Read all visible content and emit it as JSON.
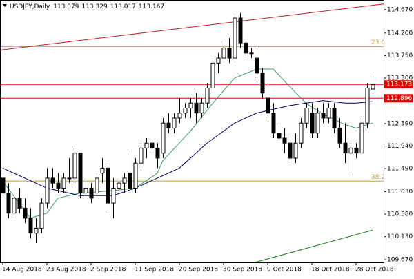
{
  "chart_data": {
    "type": "candlestick",
    "title": "USDJPY,Daily",
    "categories": [
      "14 Aug 2018",
      null,
      null,
      null,
      null,
      null,
      null,
      null,
      "23 Aug 2018",
      null,
      null,
      null,
      null,
      null,
      null,
      null,
      "2 Sep 2018",
      null,
      null,
      null,
      null,
      null,
      null,
      null,
      "11 Sep 2018",
      null,
      null,
      null,
      null,
      null,
      null,
      null,
      "20 Sep 2018",
      null,
      null,
      null,
      null,
      null,
      null,
      null,
      "30 Sep 2018",
      null,
      null,
      null,
      null,
      null,
      null,
      null,
      "9 Oct 2018",
      null,
      null,
      null,
      null,
      null,
      null,
      null,
      "18 Oct 2018",
      null,
      null,
      null,
      null,
      null,
      null,
      null,
      "28 Oct 2018",
      null,
      null,
      null
    ],
    "open": [
      111.3,
      111.0,
      110.6,
      110.9,
      110.7,
      110.5,
      110.2,
      110.3,
      110.8,
      111.3,
      111.2,
      111.1,
      111.3,
      111.3,
      111.8,
      111.0,
      111.1,
      111.0,
      111.4,
      111.5,
      110.8,
      111.1,
      111.2,
      111.4,
      111.1,
      111.6,
      111.9,
      112.0,
      111.9,
      111.8,
      112.4,
      112.3,
      112.5,
      112.6,
      112.7,
      112.8,
      112.6,
      112.8,
      113.1,
      113.6,
      113.7,
      113.9,
      113.7,
      114.5,
      114.0,
      113.8,
      113.7,
      113.4,
      112.9,
      112.6,
      112.2,
      112.1,
      112.0,
      111.7,
      112.0,
      112.4,
      112.6,
      112.2,
      112.6,
      112.5,
      112.7,
      112.3,
      112.0,
      111.8,
      111.9,
      111.8,
      112.4,
      113.079
    ],
    "high": [
      111.4,
      111.2,
      111.0,
      111.1,
      110.9,
      110.7,
      110.5,
      110.9,
      111.5,
      111.5,
      111.4,
      111.4,
      111.7,
      111.9,
      111.8,
      111.3,
      111.2,
      111.4,
      111.7,
      111.6,
      111.3,
      111.3,
      111.4,
      111.8,
      111.7,
      112.0,
      112.1,
      112.1,
      112.0,
      112.5,
      112.6,
      112.6,
      112.9,
      112.8,
      112.9,
      113.0,
      112.9,
      113.2,
      113.7,
      113.8,
      114.0,
      114.1,
      114.6,
      114.6,
      114.2,
      113.9,
      113.9,
      113.5,
      113.2,
      112.8,
      112.4,
      112.3,
      112.2,
      112.2,
      112.5,
      112.8,
      112.8,
      112.7,
      112.8,
      112.8,
      112.8,
      112.5,
      112.4,
      112.0,
      112.0,
      112.5,
      113.2,
      113.329
    ],
    "low": [
      110.9,
      110.5,
      110.5,
      110.6,
      110.4,
      110.1,
      110.0,
      110.2,
      110.7,
      111.1,
      111.0,
      111.0,
      111.2,
      111.2,
      110.9,
      110.9,
      110.8,
      110.9,
      111.2,
      110.6,
      110.5,
      111.0,
      111.0,
      111.0,
      111.0,
      111.5,
      111.7,
      111.8,
      111.5,
      111.7,
      112.2,
      112.2,
      112.4,
      112.5,
      112.5,
      112.4,
      112.5,
      112.7,
      113.0,
      113.4,
      113.6,
      113.6,
      113.6,
      113.9,
      113.7,
      113.7,
      113.3,
      112.9,
      112.5,
      112.1,
      112.0,
      111.8,
      111.6,
      111.6,
      111.9,
      112.3,
      112.1,
      112.1,
      112.4,
      112.4,
      112.2,
      111.9,
      111.6,
      111.4,
      111.7,
      111.8,
      112.3,
      113.017
    ],
    "close": [
      111.0,
      110.6,
      110.9,
      110.7,
      110.5,
      110.2,
      110.3,
      110.8,
      111.3,
      111.2,
      111.1,
      111.3,
      111.3,
      111.8,
      111.0,
      111.1,
      110.9,
      111.3,
      111.5,
      110.8,
      111.1,
      111.2,
      111.3,
      111.1,
      111.6,
      111.9,
      112.0,
      111.9,
      111.7,
      112.4,
      112.3,
      112.5,
      112.6,
      112.7,
      112.8,
      112.6,
      112.8,
      113.1,
      113.6,
      113.7,
      113.9,
      113.7,
      114.5,
      114.0,
      113.8,
      113.8,
      113.4,
      113.0,
      112.6,
      112.2,
      112.1,
      112.0,
      111.7,
      112.0,
      112.4,
      112.7,
      112.2,
      112.6,
      112.5,
      112.7,
      112.3,
      112.0,
      111.8,
      111.9,
      111.8,
      112.4,
      113.1,
      113.167
    ],
    "ylim": [
      109.615,
      114.86
    ],
    "yticks": [
      {
        "value": 109.67,
        "label": "109.670"
      },
      {
        "value": 110.13,
        "label": "110.130"
      },
      {
        "value": 110.58,
        "label": "110.580"
      },
      {
        "value": 111.03,
        "label": "111.030"
      },
      {
        "value": 111.49,
        "label": "111.490"
      },
      {
        "value": 111.94,
        "label": "111.940"
      },
      {
        "value": 112.39,
        "label": "112.390"
      },
      {
        "value": 113.3,
        "label": "113.300"
      },
      {
        "value": 113.75,
        "label": "113.750"
      },
      {
        "value": 114.2,
        "label": "114.200"
      },
      {
        "value": 114.67,
        "label": "114.670"
      }
    ],
    "lines": [
      {
        "color": "#3c9a5f",
        "x": [
          0,
          5,
          8,
          10,
          14,
          20,
          24,
          28,
          29,
          34,
          38,
          42,
          46,
          49,
          52,
          55,
          58,
          62,
          64,
          67
        ],
        "values": [
          111.24,
          110.5,
          110.6,
          110.9,
          111.0,
          111.05,
          111.1,
          111.4,
          111.65,
          112.24,
          112.79,
          113.3,
          113.48,
          113.48,
          113.13,
          112.79,
          112.58,
          112.37,
          112.3,
          112.4
        ]
      },
      {
        "color": "#000066",
        "x": [
          0,
          8,
          14,
          20,
          24,
          32,
          37,
          42,
          46,
          52,
          55,
          58,
          62,
          64,
          67
        ],
        "values": [
          111.5,
          111.1,
          110.95,
          110.95,
          111.1,
          111.5,
          112.0,
          112.4,
          112.6,
          112.75,
          112.8,
          112.85,
          112.8,
          112.8,
          112.83
        ]
      },
      {
        "color": "#1a7a1a",
        "x": [
          45.5,
          67
        ],
        "values": [
          109.61,
          110.26
        ]
      }
    ],
    "trendlines": [
      {
        "color": "#b22222",
        "x": [
          -0.5,
          69
        ],
        "values": [
          113.86,
          114.78
        ]
      }
    ],
    "levels": [
      {
        "value": 113.173,
        "color": "#e00000"
      },
      {
        "value": 112.896,
        "color": "#e00000"
      }
    ],
    "fib_levels": [
      {
        "label": "23.6",
        "value": 113.93,
        "color": "#c8a040"
      },
      {
        "label": "38.2",
        "value": 111.24,
        "color": "#c8a040"
      }
    ]
  }
}
